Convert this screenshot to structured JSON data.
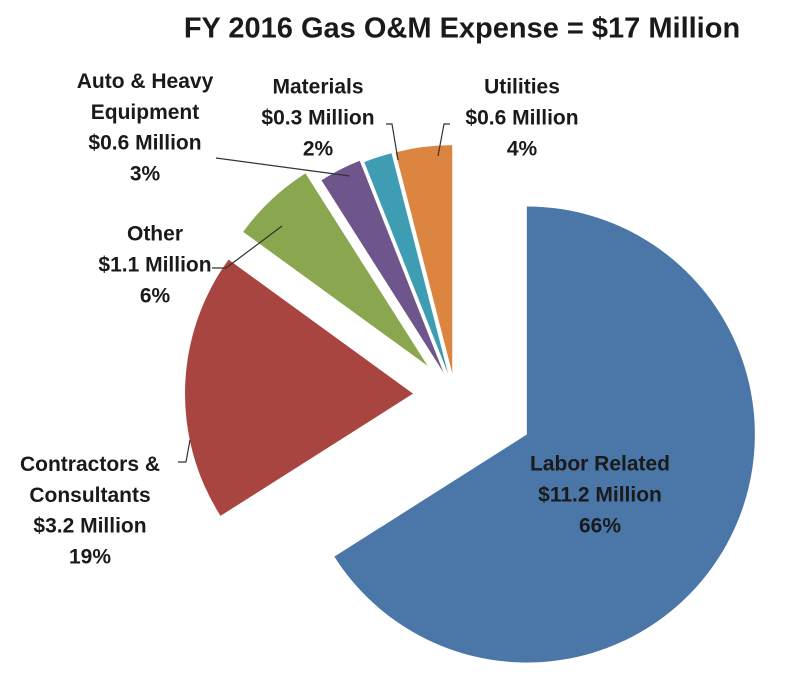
{
  "chart_data": {
    "type": "pie",
    "title": "FY 2016 Gas O&M Expense = $17 Million",
    "categories": [
      "Labor Related",
      "Contractors & Consultants",
      "Other",
      "Auto & Heavy Equipment",
      "Materials",
      "Utilities"
    ],
    "values": [
      66,
      19,
      6,
      3,
      2,
      4
    ],
    "value_labels": [
      "66%",
      "19%",
      "6%",
      "3%",
      "2%",
      "4%"
    ],
    "amounts": [
      11.2,
      3.2,
      1.1,
      0.6,
      0.3,
      0.6
    ],
    "amount_labels": [
      "$11.2 Million",
      "$3.2 Million",
      "$1.1 Million",
      "$0.6 Million",
      "$0.3 Million",
      "$0.6 Million"
    ],
    "colors": [
      "#4a76a8",
      "#a84541",
      "#8aa64f",
      "#6e558c",
      "#3f9db3",
      "#db8540"
    ]
  }
}
